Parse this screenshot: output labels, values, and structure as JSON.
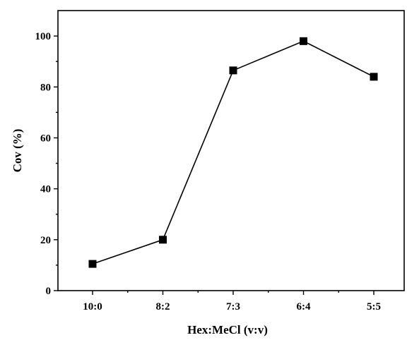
{
  "chart_data": {
    "type": "line",
    "categories": [
      "10:0",
      "8:2",
      "7:3",
      "6:4",
      "5:5"
    ],
    "series": [
      {
        "values": [
          10.5,
          20,
          86.5,
          98,
          84
        ],
        "marker": "square",
        "color": "#000000"
      }
    ],
    "xlabel": "Hex:MeCl (v:v)",
    "ylabel": "Cov (%)",
    "ylim": [
      0,
      110
    ],
    "yticks": [
      0,
      20,
      40,
      60,
      80,
      100
    ],
    "grid": false,
    "legend": "none"
  }
}
